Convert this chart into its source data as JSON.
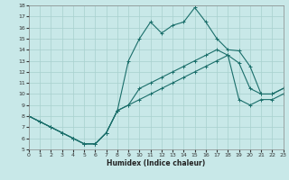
{
  "xlabel": "Humidex (Indice chaleur)",
  "bg_color": "#c8e8e8",
  "line_color": "#1a6e6a",
  "grid_color": "#a8d0ce",
  "xlim": [
    0,
    23
  ],
  "ylim": [
    5,
    18
  ],
  "xticks": [
    0,
    1,
    2,
    3,
    4,
    5,
    6,
    7,
    8,
    9,
    10,
    11,
    12,
    13,
    14,
    15,
    16,
    17,
    18,
    19,
    20,
    21,
    22,
    23
  ],
  "yticks": [
    5,
    6,
    7,
    8,
    9,
    10,
    11,
    12,
    13,
    14,
    15,
    16,
    17,
    18
  ],
  "line1_x": [
    0,
    1,
    2,
    3,
    4,
    5,
    6,
    7,
    8,
    9,
    10,
    11,
    12,
    13,
    14,
    15,
    16,
    17,
    18,
    19,
    20,
    21,
    22,
    23
  ],
  "line1_y": [
    8.0,
    7.5,
    7.0,
    6.5,
    6.0,
    5.5,
    5.5,
    6.5,
    8.5,
    13.0,
    15.0,
    16.5,
    15.5,
    16.2,
    16.5,
    17.8,
    16.5,
    15.0,
    14.0,
    13.9,
    12.5,
    10.0,
    10.0,
    10.5
  ],
  "line2_x": [
    0,
    1,
    2,
    3,
    4,
    5,
    6,
    7,
    8,
    9,
    10,
    11,
    12,
    13,
    14,
    15,
    16,
    17,
    18,
    19,
    20,
    21,
    22,
    23
  ],
  "line2_y": [
    8.0,
    7.5,
    7.0,
    6.5,
    6.0,
    5.5,
    5.5,
    6.5,
    8.5,
    9.0,
    10.5,
    11.0,
    11.5,
    12.0,
    12.5,
    13.0,
    13.5,
    14.0,
    13.5,
    12.8,
    10.5,
    10.0,
    10.0,
    10.5
  ],
  "line3_x": [
    0,
    1,
    2,
    3,
    4,
    5,
    6,
    7,
    8,
    9,
    10,
    11,
    12,
    13,
    14,
    15,
    16,
    17,
    18,
    19,
    20,
    21,
    22,
    23
  ],
  "line3_y": [
    8.0,
    7.5,
    7.0,
    6.5,
    6.0,
    5.5,
    5.5,
    6.5,
    8.5,
    9.0,
    9.5,
    10.0,
    10.5,
    11.0,
    11.5,
    12.0,
    12.5,
    13.0,
    13.5,
    9.5,
    9.0,
    9.5,
    9.5,
    10.0
  ]
}
